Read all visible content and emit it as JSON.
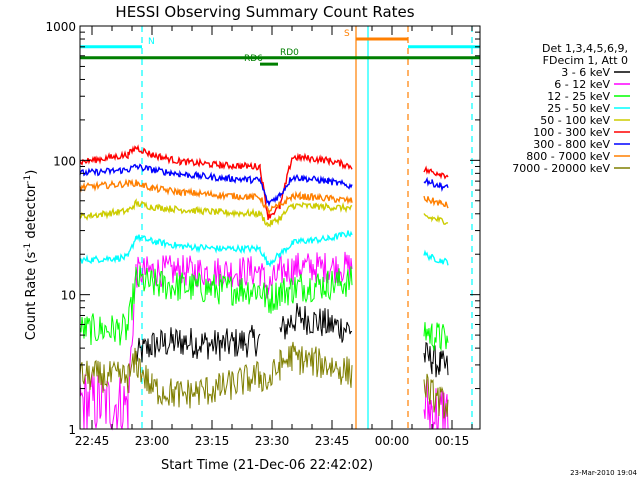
{
  "chart_data": {
    "type": "line",
    "title": "HESSI Observing Summary Count Rates",
    "xlabel": "Start Time (21-Dec-06 22:42:02)",
    "ylabel": "Count Rate (s",
    "ylabel_sup1": "-1",
    "ylabel_mid": " detector",
    "ylabel_sup2": "-1",
    "ylabel_end": ")",
    "y_scale": "log",
    "ylim": [
      1,
      1000
    ],
    "xlim_minutes_after_2242": [
      0,
      100
    ],
    "x_ticks": [
      {
        "label": "22:45",
        "minute": 3
      },
      {
        "label": "23:00",
        "minute": 18
      },
      {
        "label": "23:15",
        "minute": 33
      },
      {
        "label": "23:30",
        "minute": 48
      },
      {
        "label": "23:45",
        "minute": 63
      },
      {
        "label": "00:00",
        "minute": 78
      },
      {
        "label": "00:15",
        "minute": 93
      }
    ],
    "y_ticks": [
      {
        "label": "1",
        "value": 1
      },
      {
        "label": "10",
        "value": 10
      },
      {
        "label": "100",
        "value": 100
      },
      {
        "label": "1000",
        "value": 1000
      }
    ],
    "legend": {
      "header": [
        "Det 1,3,4,5,6,9,",
        "FDecim 1, Att 0"
      ],
      "placement": "right"
    },
    "series": [
      {
        "name": "3 - 6 keV",
        "color": "#000000",
        "x": [
          0,
          12,
          14,
          18,
          25,
          35,
          45,
          47,
          50,
          53,
          55,
          62,
          68,
          79,
          84,
          86,
          88,
          90,
          92
        ],
        "y": [
          null,
          null,
          3.5,
          4.2,
          4.5,
          4.2,
          4.6,
          null,
          5.2,
          6.5,
          6.8,
          6.0,
          5.5,
          null,
          null,
          3.5,
          3.3,
          3.0,
          2.8
        ]
      },
      {
        "name": "6 - 12 keV",
        "color": "#ff00ff",
        "x": [
          0,
          12,
          14,
          18,
          25,
          35,
          45,
          47,
          50,
          53,
          55,
          62,
          68,
          79,
          84,
          86,
          88,
          90,
          92
        ],
        "y": [
          1.6,
          1.5,
          14.5,
          15.0,
          15.0,
          14.8,
          15.0,
          11.0,
          15.0,
          15.5,
          16.0,
          16.0,
          16.0,
          null,
          null,
          1.5,
          1.4,
          1.3,
          1.3
        ]
      },
      {
        "name": "12 - 25 keV",
        "color": "#00ff00",
        "x": [
          0,
          12,
          14,
          18,
          25,
          35,
          45,
          47,
          50,
          53,
          55,
          62,
          68,
          79,
          84,
          86,
          88,
          90,
          92
        ],
        "y": [
          5.5,
          5.5,
          13.0,
          12.0,
          11.5,
          11.0,
          11.0,
          9.0,
          10.5,
          11.0,
          11.5,
          12.0,
          12.5,
          null,
          null,
          5.5,
          5.0,
          4.8,
          4.5
        ]
      },
      {
        "name": "25 - 50 keV",
        "color": "#00ffff",
        "x": [
          0,
          12,
          14,
          18,
          25,
          35,
          45,
          47,
          50,
          53,
          55,
          62,
          68,
          79,
          84,
          86,
          88,
          90,
          92
        ],
        "y": [
          18.0,
          19.0,
          27.0,
          25.0,
          23.0,
          22.0,
          22.0,
          17.0,
          20.0,
          24.0,
          25.0,
          26.0,
          29.0,
          null,
          null,
          20.0,
          19.0,
          18.0,
          17.5
        ]
      },
      {
        "name": "50 - 100 keV",
        "color": "#cccc00",
        "x": [
          0,
          12,
          14,
          18,
          25,
          35,
          45,
          47,
          50,
          53,
          55,
          62,
          68,
          79,
          84,
          86,
          88,
          90,
          92
        ],
        "y": [
          38.0,
          42.0,
          48.0,
          45.0,
          43.0,
          41.0,
          40.0,
          33.0,
          37.0,
          46.0,
          46.0,
          45.0,
          44.0,
          null,
          null,
          38.0,
          37.0,
          36.0,
          35.0
        ]
      },
      {
        "name": "100 - 300 keV",
        "color": "#ff0000",
        "x": [
          0,
          12,
          14,
          18,
          25,
          35,
          45,
          47,
          50,
          53,
          55,
          62,
          68,
          79,
          84,
          86,
          88,
          90,
          92
        ],
        "y": [
          97.0,
          110.0,
          125.0,
          110.0,
          98.0,
          92.0,
          90.0,
          38.0,
          45.0,
          105.0,
          105.0,
          100.0,
          90.0,
          null,
          null,
          85.0,
          82.0,
          80.0,
          77.0
        ]
      },
      {
        "name": "300 - 800 keV",
        "color": "#0000ff",
        "x": [
          0,
          12,
          14,
          18,
          25,
          35,
          45,
          47,
          50,
          53,
          55,
          62,
          68,
          79,
          84,
          86,
          88,
          90,
          92
        ],
        "y": [
          80.0,
          85.0,
          90.0,
          85.0,
          79.0,
          74.0,
          71.0,
          48.0,
          55.0,
          75.0,
          74.0,
          70.0,
          64.0,
          null,
          null,
          72.0,
          68.0,
          65.0,
          62.0
        ]
      },
      {
        "name": "800 - 7000 keV",
        "color": "#ff7f00",
        "x": [
          0,
          12,
          14,
          18,
          25,
          35,
          45,
          47,
          50,
          53,
          55,
          62,
          68,
          79,
          84,
          86,
          88,
          90,
          92
        ],
        "y": [
          63.0,
          67.0,
          68.0,
          62.0,
          58.0,
          55.0,
          53.0,
          42.0,
          46.0,
          54.0,
          54.0,
          52.0,
          50.0,
          null,
          null,
          52.0,
          50.0,
          48.0,
          46.0
        ]
      },
      {
        "name": "7000 - 20000 keV",
        "color": "#7f7f00",
        "x": [
          0,
          12,
          14,
          18,
          25,
          35,
          45,
          47,
          50,
          53,
          55,
          62,
          68,
          79,
          84,
          86,
          88,
          90,
          92
        ],
        "y": [
          2.5,
          2.4,
          3.2,
          2.0,
          1.8,
          2.0,
          2.5,
          2.2,
          3.0,
          3.5,
          3.3,
          3.0,
          2.6,
          null,
          null,
          2.2,
          1.8,
          1.6,
          1.5
        ]
      }
    ],
    "flags": [
      {
        "label": "N",
        "color": "#00ffff",
        "y": 700,
        "x_segments": [
          [
            0,
            15.5
          ],
          [
            82,
            100
          ]
        ],
        "label_x": 17
      },
      {
        "label": "S",
        "color": "#ff7f00",
        "y": 800,
        "x_segments": [
          [
            69,
            82
          ]
        ],
        "label_x": 66
      },
      {
        "label": "RD0",
        "color": "#007f00",
        "y": 580,
        "x_segments": [
          [
            0,
            100
          ]
        ],
        "label_x": 50
      },
      {
        "label": "RD6",
        "color": "#007f00",
        "y": 520,
        "x_segments": [
          [
            45,
            49.5
          ]
        ],
        "label_x": 41
      }
    ],
    "vertical_lines": [
      {
        "color": "#00ffff",
        "style": "dashed",
        "x": 15.5
      },
      {
        "color": "#ff7f00",
        "style": "solid",
        "x": 69
      },
      {
        "color": "#00ffff",
        "style": "solid",
        "x": 72
      },
      {
        "color": "#ff7f00",
        "style": "dashed",
        "x": 82
      },
      {
        "color": "#00ffff",
        "style": "dashed",
        "x": 98
      }
    ],
    "footer_date": "23-Mar-2010 19:04"
  }
}
